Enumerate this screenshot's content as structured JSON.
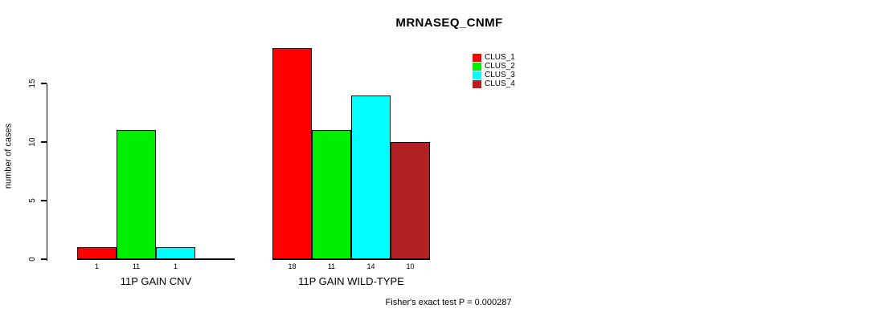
{
  "title": "MRNASEQ_CNMF",
  "chart_data": {
    "type": "bar",
    "title": "MRNASEQ_CNMF",
    "xlabel": "",
    "ylabel": "number of cases",
    "yticks": [
      0,
      5,
      10,
      15
    ],
    "ylim": [
      0,
      18
    ],
    "grid": false,
    "legend_position": "top-right",
    "background_color": "#ffffff",
    "bar_border_color": "#000000",
    "clusters": [
      {
        "name": "CLUS_1",
        "color": "#ff0000"
      },
      {
        "name": "CLUS_2",
        "color": "#00ee00"
      },
      {
        "name": "CLUS_3",
        "color": "#00ffff"
      },
      {
        "name": "CLUS_4",
        "color": "#b22222"
      }
    ],
    "categories": [
      "11P GAIN CNV",
      "11P GAIN WILD-TYPE"
    ],
    "series": [
      {
        "name": "CLUS_1",
        "values": [
          1,
          18
        ]
      },
      {
        "name": "CLUS_2",
        "values": [
          11,
          11
        ]
      },
      {
        "name": "CLUS_3",
        "values": [
          1,
          14
        ]
      },
      {
        "name": "CLUS_4",
        "values": [
          0,
          10
        ]
      }
    ],
    "bar_value_labels": {
      "11P GAIN CNV": [
        1,
        11,
        1,
        null
      ],
      "11P GAIN WILD-TYPE": [
        18,
        11,
        14,
        10
      ]
    },
    "annotation": "Fisher's exact test P = 0.000287"
  }
}
